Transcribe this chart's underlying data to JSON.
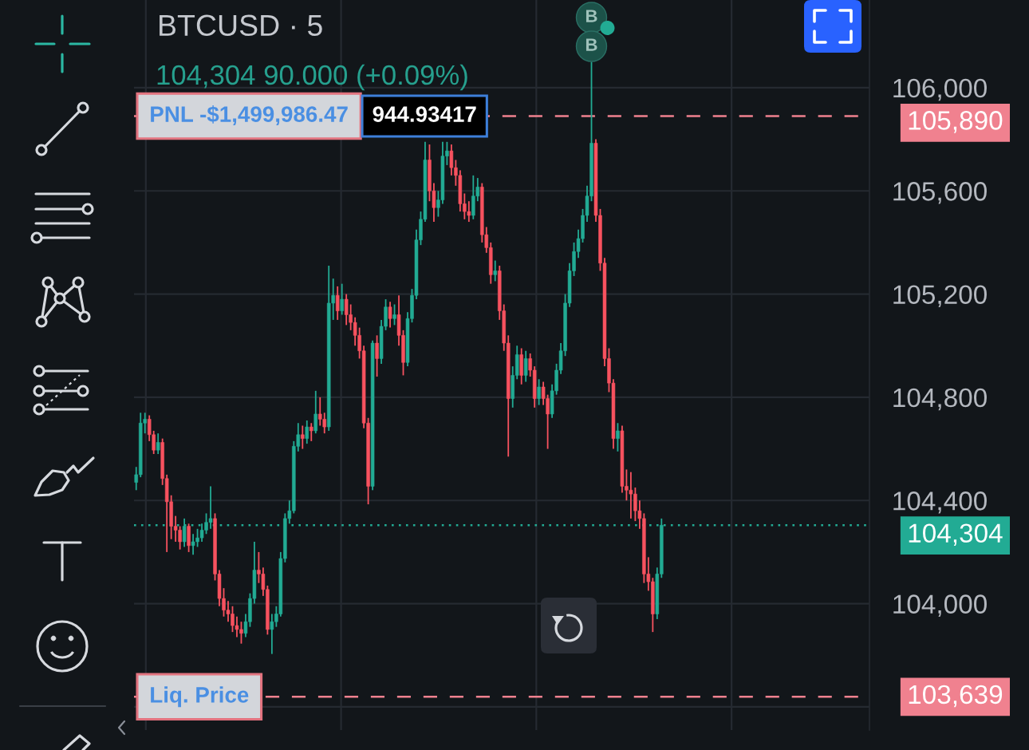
{
  "chart_data": {
    "type": "candlestick",
    "title": "BTCUSD · 5",
    "subtitle": "104,304 90.000 (+0.09%)",
    "categories": [
      null,
      null,
      null,
      null,
      null,
      null,
      null,
      null,
      null,
      null,
      null,
      null,
      null,
      null,
      null,
      null,
      null,
      null,
      null,
      null,
      null,
      null,
      null,
      null,
      null,
      null,
      null,
      null,
      null,
      null,
      null,
      null,
      null,
      null,
      null,
      null,
      null,
      null,
      null,
      null,
      null,
      null,
      null,
      null,
      null,
      null,
      null,
      null,
      null,
      null,
      null,
      null,
      null,
      null,
      null,
      null,
      null,
      null,
      null,
      null,
      null,
      null,
      null,
      null,
      null,
      null,
      null,
      null,
      null,
      null,
      null,
      null,
      null,
      null,
      null,
      null,
      null,
      null,
      null,
      null,
      null,
      null,
      null,
      null,
      null,
      null,
      null,
      null,
      null,
      null,
      null,
      null,
      null,
      null,
      null,
      null,
      null,
      null,
      null,
      null,
      null,
      null,
      null,
      null,
      null,
      null,
      null,
      null,
      null,
      null,
      null,
      null,
      null,
      null,
      null,
      null,
      null,
      null,
      null,
      null,
      null,
      null,
      null,
      null,
      null,
      null,
      null,
      null,
      null,
      null,
      null,
      null,
      null,
      null,
      null,
      null,
      null,
      null,
      null,
      null,
      null,
      null,
      null,
      null,
      null,
      null,
      null,
      null,
      null,
      null,
      null,
      null,
      null,
      null,
      null,
      null,
      null,
      null,
      null,
      null,
      null,
      null,
      null,
      null,
      null,
      null,
      null,
      null
    ],
    "ohlc": [
      [
        104470,
        104530,
        104440,
        104500
      ],
      [
        104500,
        104740,
        104490,
        104700
      ],
      [
        104700,
        104740,
        104660,
        104715
      ],
      [
        104715,
        104730,
        104630,
        104655
      ],
      [
        104655,
        104670,
        104580,
        104595
      ],
      [
        104595,
        104660,
        104580,
        104625
      ],
      [
        104625,
        104640,
        104460,
        104485
      ],
      [
        104485,
        104500,
        104200,
        104395
      ],
      [
        104395,
        104420,
        104250,
        104300
      ],
      [
        104300,
        104340,
        104240,
        104285
      ],
      [
        104285,
        104300,
        104210,
        104240
      ],
      [
        104240,
        104330,
        104220,
        104300
      ],
      [
        104300,
        104310,
        104200,
        104225
      ],
      [
        104225,
        104270,
        104190,
        104240
      ],
      [
        104240,
        104290,
        104220,
        104255
      ],
      [
        104255,
        104310,
        104240,
        104285
      ],
      [
        104285,
        104350,
        104270,
        104315
      ],
      [
        104315,
        104455,
        104290,
        104330
      ],
      [
        104330,
        104350,
        104090,
        104115
      ],
      [
        104115,
        104130,
        103990,
        104020
      ],
      [
        104020,
        104060,
        103950,
        103975
      ],
      [
        103975,
        104010,
        103930,
        103960
      ],
      [
        103960,
        103990,
        103890,
        103915
      ],
      [
        103915,
        103950,
        103870,
        103900
      ],
      [
        103900,
        103930,
        103845,
        103885
      ],
      [
        103885,
        103960,
        103870,
        103930
      ],
      [
        103930,
        104040,
        103910,
        104020
      ],
      [
        104020,
        104240,
        104000,
        104130
      ],
      [
        104130,
        104200,
        104080,
        104115
      ],
      [
        104115,
        104140,
        104030,
        104055
      ],
      [
        104055,
        104070,
        103880,
        103900
      ],
      [
        103900,
        103960,
        103805,
        103930
      ],
      [
        103930,
        103990,
        103910,
        103960
      ],
      [
        103960,
        104200,
        103950,
        104175
      ],
      [
        104175,
        104350,
        104160,
        104330
      ],
      [
        104330,
        104400,
        104310,
        104360
      ],
      [
        104360,
        104630,
        104350,
        104610
      ],
      [
        104610,
        104700,
        104590,
        104655
      ],
      [
        104655,
        104690,
        104600,
        104640
      ],
      [
        104640,
        104710,
        104620,
        104685
      ],
      [
        104685,
        104700,
        104630,
        104670
      ],
      [
        104670,
        104825,
        104660,
        104735
      ],
      [
        104735,
        104800,
        104690,
        104715
      ],
      [
        104715,
        104740,
        104660,
        104685
      ],
      [
        104685,
        105310,
        104670,
        105165
      ],
      [
        105165,
        105260,
        105100,
        105195
      ],
      [
        105195,
        105230,
        105100,
        105135
      ],
      [
        105135,
        105240,
        105120,
        105180
      ],
      [
        105180,
        105200,
        105080,
        105120
      ],
      [
        105120,
        105160,
        105060,
        105090
      ],
      [
        105090,
        105110,
        105000,
        105040
      ],
      [
        105040,
        105070,
        104950,
        104980
      ],
      [
        104980,
        105000,
        104680,
        104700
      ],
      [
        104700,
        104720,
        104385,
        104455
      ],
      [
        104455,
        105020,
        104440,
        105010
      ],
      [
        105010,
        105040,
        104880,
        104950
      ],
      [
        104950,
        105100,
        104930,
        105075
      ],
      [
        105075,
        105180,
        105060,
        105150
      ],
      [
        105150,
        105170,
        105070,
        105105
      ],
      [
        105105,
        105160,
        105080,
        105120
      ],
      [
        105120,
        105195,
        105000,
        105040
      ],
      [
        105040,
        105060,
        104885,
        104935
      ],
      [
        104935,
        105130,
        104920,
        105105
      ],
      [
        105105,
        105220,
        105090,
        105195
      ],
      [
        105195,
        105450,
        105180,
        105410
      ],
      [
        105410,
        105520,
        105390,
        105490
      ],
      [
        105490,
        105790,
        105480,
        105720
      ],
      [
        105720,
        105780,
        105560,
        105600
      ],
      [
        105600,
        105630,
        105480,
        105535
      ],
      [
        105535,
        105600,
        105500,
        105565
      ],
      [
        105565,
        105790,
        105550,
        105735
      ],
      [
        105735,
        105790,
        105700,
        105755
      ],
      [
        105755,
        105780,
        105660,
        105690
      ],
      [
        105690,
        105720,
        105620,
        105660
      ],
      [
        105660,
        105680,
        105520,
        105550
      ],
      [
        105550,
        105590,
        105490,
        105520
      ],
      [
        105520,
        105560,
        105480,
        105505
      ],
      [
        105505,
        105660,
        105490,
        105580
      ],
      [
        105580,
        105650,
        105560,
        105615
      ],
      [
        105615,
        105630,
        105400,
        105430
      ],
      [
        105430,
        105460,
        105360,
        105380
      ],
      [
        105380,
        105400,
        105240,
        105275
      ],
      [
        105275,
        105330,
        105250,
        105290
      ],
      [
        105290,
        105310,
        105100,
        105135
      ],
      [
        105135,
        105160,
        104980,
        105010
      ],
      [
        105010,
        105040,
        104570,
        104795
      ],
      [
        104795,
        104920,
        104760,
        104885
      ],
      [
        104885,
        105000,
        104870,
        104965
      ],
      [
        104965,
        104990,
        104850,
        104885
      ],
      [
        104885,
        104980,
        104860,
        104950
      ],
      [
        104950,
        104970,
        104880,
        104905
      ],
      [
        104905,
        104920,
        104760,
        104795
      ],
      [
        104795,
        104870,
        104770,
        104840
      ],
      [
        104840,
        104860,
        104770,
        104795
      ],
      [
        104795,
        104810,
        104600,
        104735
      ],
      [
        104735,
        104850,
        104720,
        104825
      ],
      [
        104825,
        104930,
        104810,
        104905
      ],
      [
        104905,
        105010,
        104890,
        104980
      ],
      [
        104980,
        105200,
        104960,
        105165
      ],
      [
        105165,
        105320,
        105150,
        105290
      ],
      [
        105290,
        105400,
        105270,
        105365
      ],
      [
        105365,
        105450,
        105340,
        105415
      ],
      [
        105415,
        105530,
        105400,
        105505
      ],
      [
        105505,
        105620,
        105480,
        105580
      ],
      [
        105580,
        106100,
        105560,
        105785
      ],
      [
        105785,
        105800,
        105480,
        105505
      ],
      [
        105505,
        105530,
        105290,
        105320
      ],
      [
        105320,
        105340,
        104920,
        104950
      ],
      [
        104950,
        104990,
        104820,
        104855
      ],
      [
        104855,
        104870,
        104600,
        104640
      ],
      [
        104640,
        104700,
        104590,
        104670
      ],
      [
        104670,
        104690,
        104430,
        104455
      ],
      [
        104455,
        104520,
        104400,
        104440
      ],
      [
        104440,
        104510,
        104330,
        104425
      ],
      [
        104425,
        104450,
        104320,
        104360
      ],
      [
        104360,
        104400,
        104290,
        104330
      ],
      [
        104330,
        104350,
        104080,
        104115
      ],
      [
        104115,
        104180,
        104050,
        104085
      ],
      [
        104085,
        104100,
        103890,
        103960
      ],
      [
        103960,
        104140,
        103940,
        104115
      ],
      [
        104115,
        104330,
        104100,
        104304
      ],
      null,
      null,
      null,
      null,
      null,
      null,
      null,
      null,
      null,
      null,
      null,
      null,
      null,
      null,
      null,
      null,
      null,
      null,
      null,
      null,
      null,
      null,
      null,
      null,
      null,
      null,
      null,
      null,
      null,
      null,
      null,
      null,
      null,
      null,
      null,
      null,
      null,
      null,
      null,
      null,
      null,
      null,
      null,
      null,
      null,
      null,
      null
    ],
    "colors": [
      "#22ab94",
      "#22ab94",
      "#22ab94",
      "#f7525f",
      "#f7525f",
      "#22ab94",
      "#f7525f",
      "#f7525f",
      "#f7525f",
      "#f7525f",
      "#f7525f",
      "#22ab94",
      "#f7525f",
      "#22ab94",
      "#22ab94",
      "#22ab94",
      "#22ab94",
      "#22ab94",
      "#f7525f",
      "#f7525f",
      "#f7525f",
      "#f7525f",
      "#f7525f",
      "#f7525f",
      "#f7525f",
      "#22ab94",
      "#22ab94",
      "#22ab94",
      "#f7525f",
      "#f7525f",
      "#f7525f",
      "#22ab94",
      "#22ab94",
      "#22ab94",
      "#22ab94",
      "#22ab94",
      "#22ab94",
      "#22ab94",
      "#f7525f",
      "#22ab94",
      "#f7525f",
      "#22ab94",
      "#f7525f",
      "#f7525f",
      "#22ab94",
      "#22ab94",
      "#f7525f",
      "#22ab94",
      "#f7525f",
      "#f7525f",
      "#f7525f",
      "#f7525f",
      "#f7525f",
      "#f7525f",
      "#22ab94",
      "#f7525f",
      "#22ab94",
      "#22ab94",
      "#f7525f",
      "#22ab94",
      "#f7525f",
      "#f7525f",
      "#22ab94",
      "#22ab94",
      "#22ab94",
      "#22ab94",
      "#22ab94",
      "#f7525f",
      "#f7525f",
      "#22ab94",
      "#22ab94",
      "#22ab94",
      "#f7525f",
      "#f7525f",
      "#f7525f",
      "#f7525f",
      "#f7525f",
      "#22ab94",
      "#22ab94",
      "#f7525f",
      "#f7525f",
      "#f7525f",
      "#22ab94",
      "#f7525f",
      "#f7525f",
      "#f7525f",
      "#22ab94",
      "#22ab94",
      "#f7525f",
      "#22ab94",
      "#f7525f",
      "#f7525f",
      "#22ab94",
      "#f7525f",
      "#f7525f",
      "#22ab94",
      "#22ab94",
      "#22ab94",
      "#22ab94",
      "#22ab94",
      "#22ab94",
      "#22ab94",
      "#22ab94",
      "#22ab94",
      "#22ab94",
      "#f7525f",
      "#f7525f",
      "#f7525f",
      "#f7525f",
      "#f7525f",
      "#22ab94",
      "#f7525f",
      "#f7525f",
      "#f7525f",
      "#f7525f",
      "#f7525f",
      "#f7525f",
      "#f7525f",
      "#f7525f",
      "#22ab94",
      "#22ab94",
      null,
      null,
      null,
      null,
      null,
      null,
      null,
      null,
      null,
      null,
      null,
      null,
      null,
      null,
      null,
      null,
      null,
      null,
      null,
      null,
      null,
      null,
      null,
      null,
      null,
      null,
      null,
      null,
      null,
      null,
      null,
      null,
      null,
      null,
      null,
      null,
      null,
      null,
      null,
      null,
      null,
      null,
      null,
      null,
      null,
      null,
      null
    ],
    "ylim": [
      103510,
      106340
    ],
    "yticks": [
      {
        "value": 103600,
        "label": null
      },
      {
        "value": 104000,
        "label": "104,000"
      },
      {
        "value": 104400,
        "label": "104,400"
      },
      {
        "value": 104800,
        "label": "104,800"
      },
      {
        "value": 105200,
        "label": "105,200"
      },
      {
        "value": 105600,
        "label": "105,600"
      },
      {
        "value": 106000,
        "label": "106,000"
      }
    ],
    "ref_lines": [
      {
        "axis": "y",
        "value": 105890,
        "label": "105,890",
        "color": "#f0818f",
        "line_style": "dashed"
      },
      {
        "axis": "y",
        "value": 104304,
        "label": "104,304",
        "color": "#22ab94",
        "line_style": "dotted"
      },
      {
        "axis": "y",
        "value": 103639,
        "label": "103,639",
        "color": "#f0818f",
        "line_style": "dashed"
      }
    ],
    "annotations": [
      {
        "text": "PNL -$1,499,986.47",
        "y": 105890
      },
      {
        "text": "944.93417",
        "y": 105890
      },
      {
        "text": "Liq. Price",
        "y": 103639
      },
      "B",
      "B"
    ],
    "grid": true,
    "tick_labels": "y"
  }
}
